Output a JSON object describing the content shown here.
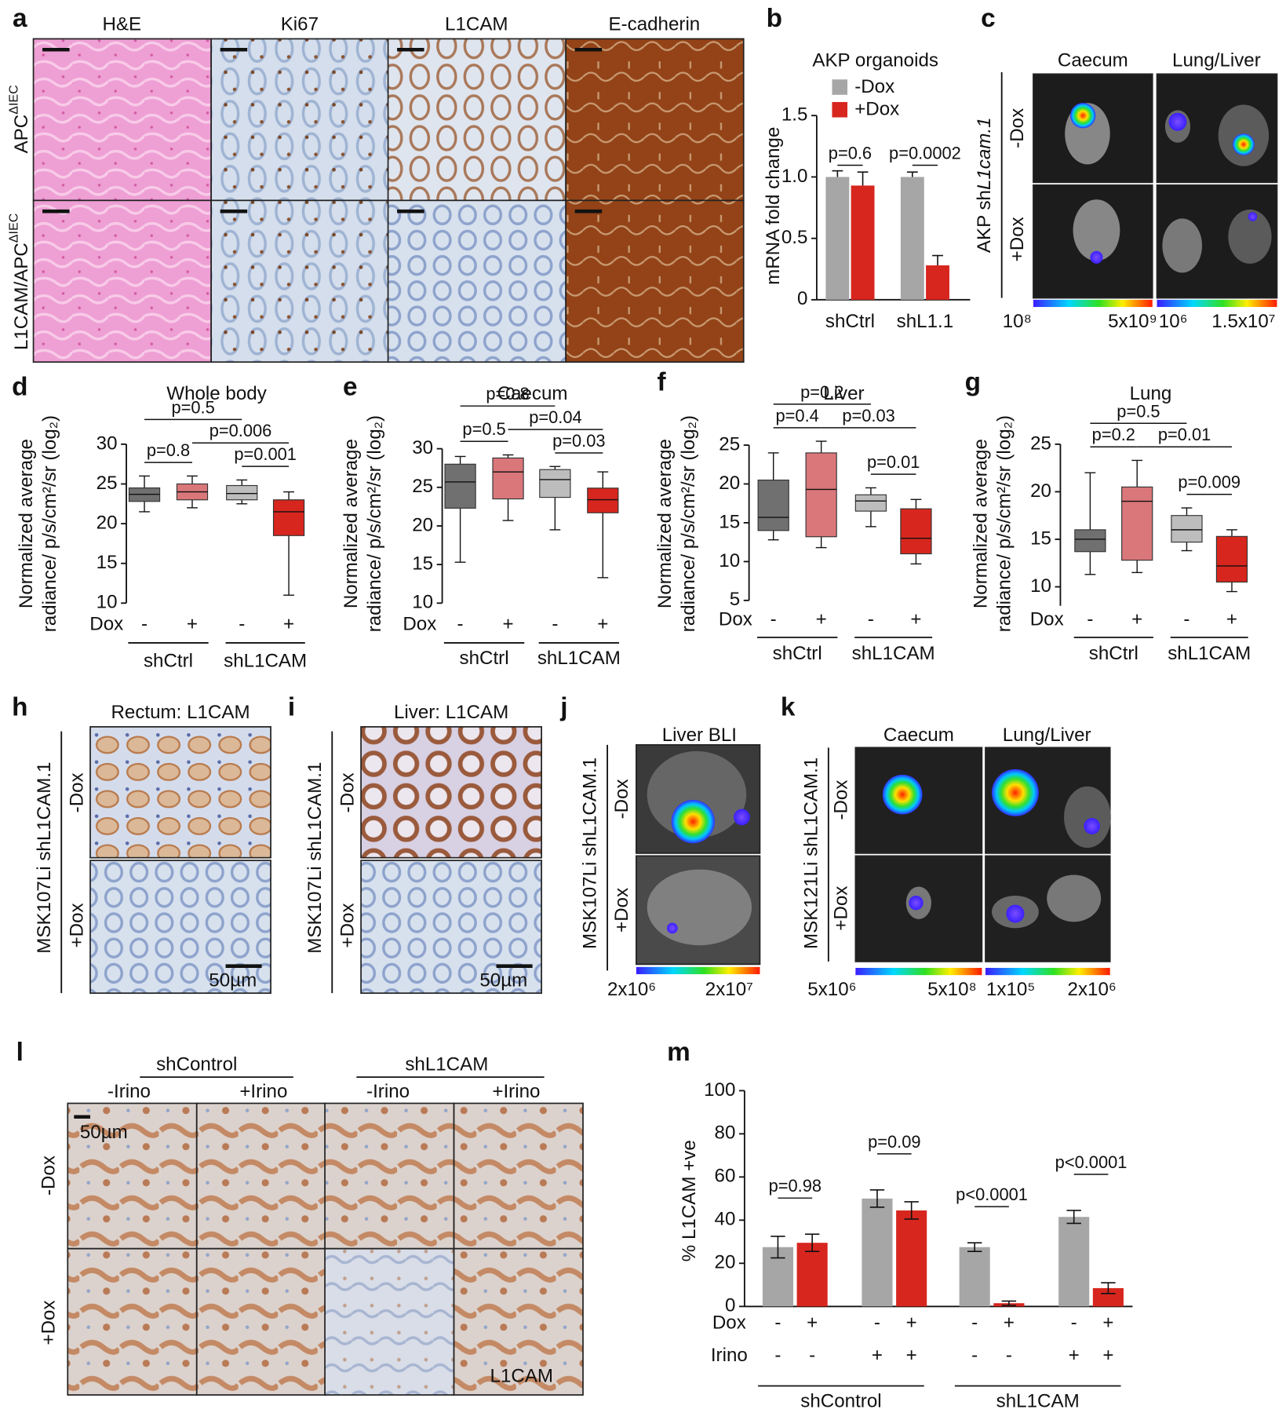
{
  "panel_a": {
    "label": "a",
    "columns": [
      "H&E",
      "Ki67",
      "L1CAM",
      "E-cadherin"
    ],
    "rows": [
      {
        "main": "APC",
        "sup": "ΔIEC"
      },
      {
        "main": "L1CAM/APC",
        "sup": "ΔIEC"
      }
    ]
  },
  "panel_c": {
    "label": "c",
    "columns": [
      "Caecum",
      "Lung/Liver"
    ],
    "side_label": {
      "plain": "AKP sh",
      "italic": "L1cam.1"
    },
    "rows": [
      "-Dox",
      "+Dox"
    ],
    "scale_labels": [
      "10⁸",
      "5x10⁹",
      "10⁶",
      "1.5x10⁷"
    ]
  },
  "panel_h": {
    "label": "h",
    "title": "Rectum: L1CAM",
    "side_label": "MSK107Li shL1CAM.1",
    "rows": [
      "-Dox",
      "+Dox"
    ],
    "scale": "50µm"
  },
  "panel_i": {
    "label": "i",
    "title": "Liver: L1CAM",
    "side_label": "MSK107Li shL1CAM.1",
    "rows": [
      "-Dox",
      "+Dox"
    ],
    "scale": "50µm"
  },
  "panel_j": {
    "label": "j",
    "title": "Liver BLI",
    "side_label": "MSK107Li shL1CAM.1",
    "rows": [
      "-Dox",
      "+Dox"
    ],
    "scale_labels": [
      "2x10⁶",
      "2x10⁷"
    ]
  },
  "panel_k": {
    "label": "k",
    "columns": [
      "Caecum",
      "Lung/Liver"
    ],
    "side_label": "MSK121Li shL1CAM.1",
    "rows": [
      "-Dox",
      "+Dox"
    ],
    "scale_labels": [
      "5x10⁶",
      "5x10⁸",
      "1x10⁵",
      "2x10⁶"
    ]
  },
  "panel_l": {
    "label": "l",
    "groups": [
      "shControl",
      "shL1CAM"
    ],
    "columns": [
      "-Irino",
      "+Irino",
      "-Irino",
      "+Irino"
    ],
    "rows": [
      "-Dox",
      "+Dox"
    ],
    "scale": "50µm",
    "stain": "L1CAM"
  },
  "chart_data": [
    {
      "panel_label": "b",
      "type": "bar",
      "title": "AKP organoids",
      "y_label": "mRNA fold change",
      "categories": [
        "shCtrl",
        "shL1.1"
      ],
      "series": [
        {
          "name": "-Dox",
          "color": "#a6a6a6",
          "values": [
            1.0,
            1.0
          ],
          "errors": [
            0.05,
            0.04
          ]
        },
        {
          "name": "+Dox",
          "color": "#d7261e",
          "values": [
            0.93,
            0.28
          ],
          "errors": [
            0.11,
            0.08
          ]
        }
      ],
      "ylim": [
        0,
        1.5
      ],
      "yticks": [
        0,
        0.5,
        {
          "value": 1,
          "label": "1.0"
        },
        1.5
      ],
      "annotations": [
        "p=0.6",
        "p=0.0002"
      ]
    },
    {
      "panel_label": "d",
      "type": "box",
      "title": "Whole body",
      "y_label": [
        "Normalized average",
        "radiance/ p/s/cm²/sr (log₂)"
      ],
      "x_row_label": "Dox",
      "categories": [
        "-",
        "+",
        "-",
        "+"
      ],
      "groups": [
        "shCtrl",
        "shL1CAM"
      ],
      "boxes": [
        {
          "color": "#707070",
          "min": 21.5,
          "q1": 22.8,
          "median": 23.7,
          "q3": 24.5,
          "max": 26
        },
        {
          "color": "#d9777a",
          "min": 22,
          "q1": 23,
          "median": 24,
          "q3": 25,
          "max": 26
        },
        {
          "color": "#bdbdbd",
          "min": 22.5,
          "q1": 23,
          "median": 23.8,
          "q3": 24.8,
          "max": 25.5
        },
        {
          "color": "#d7261e",
          "min": 11,
          "q1": 18.5,
          "median": 21.5,
          "q3": 23,
          "max": 24
        }
      ],
      "ylim": [
        10,
        30
      ],
      "yticks": [
        10,
        15,
        20,
        25,
        30
      ],
      "annotations": [
        "p=0.5",
        "p=0.8",
        "p=0.006",
        "p=0.001"
      ]
    },
    {
      "panel_label": "e",
      "type": "box",
      "title": "Caecum",
      "y_label": [
        "Normalized average",
        "radiance/ p/s/cm²/sr (log₂)"
      ],
      "x_row_label": "Dox",
      "categories": [
        "-",
        "+",
        "-",
        "+"
      ],
      "groups": [
        "shCtrl",
        "shL1CAM"
      ],
      "boxes": [
        {
          "color": "#707070",
          "min": 15.3,
          "q1": 22.3,
          "median": 25.7,
          "q3": 28,
          "max": 29
        },
        {
          "color": "#d9777a",
          "min": 20.7,
          "q1": 23.5,
          "median": 27,
          "q3": 28.8,
          "max": 29.2
        },
        {
          "color": "#bdbdbd",
          "min": 19.5,
          "q1": 23.7,
          "median": 26,
          "q3": 27.3,
          "max": 27.7
        },
        {
          "color": "#d7261e",
          "min": 13.3,
          "q1": 21.7,
          "median": 23.4,
          "q3": 24.9,
          "max": 27
        }
      ],
      "ylim": [
        10,
        30
      ],
      "yticks": [
        10,
        15,
        20,
        25,
        30
      ],
      "annotations": [
        "p=0.8",
        "p=0.5",
        "p=0.04",
        "p=0.03"
      ]
    },
    {
      "panel_label": "f",
      "type": "box",
      "title": "Liver",
      "y_label": [
        "Normalized average",
        "radiance/ p/s/cm²/sr (log₂)"
      ],
      "x_row_label": "Dox",
      "categories": [
        "-",
        "+",
        "-",
        "+"
      ],
      "groups": [
        "shCtrl",
        "shL1CAM"
      ],
      "boxes": [
        {
          "color": "#707070",
          "min": 12.8,
          "q1": 14,
          "median": 15.7,
          "q3": 20.5,
          "max": 24
        },
        {
          "color": "#d9777a",
          "min": 11.8,
          "q1": 13.2,
          "median": 19.3,
          "q3": 24,
          "max": 25.5
        },
        {
          "color": "#bdbdbd",
          "min": 14.5,
          "q1": 16.5,
          "median": 17.8,
          "q3": 18.6,
          "max": 19.5
        },
        {
          "color": "#d7261e",
          "min": 9.7,
          "q1": 11,
          "median": 13,
          "q3": 16.8,
          "max": 18
        }
      ],
      "ylim": [
        5,
        25
      ],
      "yticks": [
        5,
        10,
        15,
        20,
        25
      ],
      "annotations": [
        "p=0.2",
        "p=0.4",
        "p=0.03",
        "p=0.01"
      ]
    },
    {
      "panel_label": "g",
      "type": "box",
      "title": "Lung",
      "y_label": [
        "Normalized average",
        "radiance/ p/s/cm²/sr (log₂)"
      ],
      "x_row_label": "Dox",
      "categories": [
        "-",
        "+",
        "-",
        "+"
      ],
      "groups": [
        "shCtrl",
        "shL1CAM"
      ],
      "boxes": [
        {
          "color": "#707070",
          "min": 11.3,
          "q1": 13.7,
          "median": 15,
          "q3": 16,
          "max": 22
        },
        {
          "color": "#d9777a",
          "min": 11.5,
          "q1": 12.8,
          "median": 19,
          "q3": 20.5,
          "max": 23.3
        },
        {
          "color": "#bdbdbd",
          "min": 13.8,
          "q1": 14.7,
          "median": 16,
          "q3": 17.5,
          "max": 18.3
        },
        {
          "color": "#d7261e",
          "min": 9.5,
          "q1": 10.5,
          "median": 12.2,
          "q3": 15.3,
          "max": 16
        }
      ],
      "ylim": [
        8,
        25
      ],
      "yticks": [
        10,
        15,
        20,
        25
      ],
      "annotations": [
        "p=0.5",
        "p=0.2",
        "p=0.01",
        "p=0.009"
      ]
    },
    {
      "panel_label": "m",
      "type": "bar",
      "y_label": "% L1CAM +ve",
      "values": [
        27.5,
        29.5,
        50,
        44.5,
        27.5,
        1.5,
        41.5,
        8.5
      ],
      "errors": [
        5,
        4,
        4,
        4,
        2,
        1,
        3,
        2.5
      ],
      "colors": [
        "#a6a6a6",
        "#d7261e",
        "#a6a6a6",
        "#d7261e",
        "#a6a6a6",
        "#d7261e",
        "#a6a6a6",
        "#d7261e"
      ],
      "rows": [
        {
          "label": "Dox",
          "values": [
            "-",
            "+",
            "-",
            "+",
            "-",
            "+",
            "-",
            "+"
          ]
        },
        {
          "label": "Irino",
          "values": [
            "-",
            "-",
            "+",
            "+",
            "-",
            "-",
            "+",
            "+"
          ]
        }
      ],
      "groups": [
        "shControl",
        "shL1CAM"
      ],
      "ylim": [
        0,
        100
      ],
      "yticks": [
        0,
        20,
        40,
        60,
        80,
        100
      ],
      "annotations": [
        "p=0.98",
        "p=0.09",
        "p<0.0001",
        "p<0.0001"
      ]
    }
  ]
}
